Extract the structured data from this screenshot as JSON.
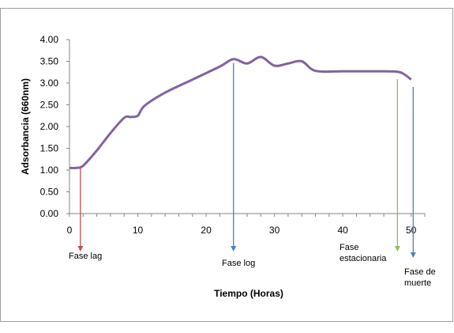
{
  "chart_data": {
    "type": "line",
    "xlabel": "Tiempo (Horas)",
    "ylabel": "Adsorbancia (660nm)",
    "xlim": [
      0,
      52
    ],
    "ylim": [
      0,
      4
    ],
    "x_ticks": [
      "0",
      "10",
      "20",
      "30",
      "40",
      "50"
    ],
    "y_ticks": [
      "0.00",
      "0.50",
      "1.00",
      "1.50",
      "2.00",
      "2.50",
      "3.00",
      "3.50",
      "4.00"
    ],
    "series": [
      {
        "color": "#8064a2",
        "x": [
          0,
          1,
          2,
          4,
          6,
          8,
          9,
          10,
          11,
          14,
          18,
          22,
          24,
          26,
          28,
          30,
          32,
          34,
          36,
          40,
          45,
          48,
          49,
          50
        ],
        "y": [
          1.05,
          1.05,
          1.1,
          1.45,
          1.85,
          2.2,
          2.22,
          2.25,
          2.48,
          2.78,
          3.08,
          3.38,
          3.55,
          3.45,
          3.6,
          3.4,
          3.45,
          3.5,
          3.28,
          3.27,
          3.27,
          3.26,
          3.2,
          3.08
        ]
      }
    ],
    "annotations": [
      {
        "label": "Fase lag",
        "x": 1.6,
        "color": "#c0504d"
      },
      {
        "label": "Fase log",
        "x": 24,
        "color": "#4f81bd"
      },
      {
        "label": "Fase\nestacionaria",
        "x": 48,
        "color": "#9bbb59"
      },
      {
        "label": "Fase de\nmuerte",
        "x": 50.3,
        "color": "#4f81bd"
      }
    ]
  }
}
